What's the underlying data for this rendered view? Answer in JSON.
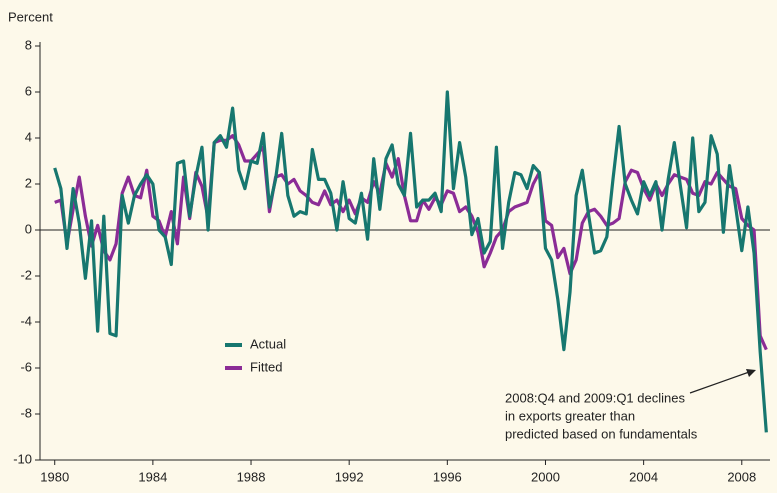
{
  "chart_data": {
    "type": "line",
    "y_label": "Percent",
    "x": [
      1980,
      1980.25,
      1980.5,
      1980.75,
      1981,
      1981.25,
      1981.5,
      1981.75,
      1982,
      1982.25,
      1982.5,
      1982.75,
      1983,
      1983.25,
      1983.5,
      1983.75,
      1984,
      1984.25,
      1984.5,
      1984.75,
      1985,
      1985.25,
      1985.5,
      1985.75,
      1986,
      1986.25,
      1986.5,
      1986.75,
      1987,
      1987.25,
      1987.5,
      1987.75,
      1988,
      1988.25,
      1988.5,
      1988.75,
      1989,
      1989.25,
      1989.5,
      1989.75,
      1990,
      1990.25,
      1990.5,
      1990.75,
      1991,
      1991.25,
      1991.5,
      1991.75,
      1992,
      1992.25,
      1992.5,
      1992.75,
      1993,
      1993.25,
      1993.5,
      1993.75,
      1994,
      1994.25,
      1994.5,
      1994.75,
      1995,
      1995.25,
      1995.5,
      1995.75,
      1996,
      1996.25,
      1996.5,
      1996.75,
      1997,
      1997.25,
      1997.5,
      1997.75,
      1998,
      1998.25,
      1998.5,
      1998.75,
      1999,
      1999.25,
      1999.5,
      1999.75,
      2000,
      2000.25,
      2000.5,
      2000.75,
      2001,
      2001.25,
      2001.5,
      2001.75,
      2002,
      2002.25,
      2002.5,
      2002.75,
      2003,
      2003.25,
      2003.5,
      2003.75,
      2004,
      2004.25,
      2004.5,
      2004.75,
      2005,
      2005.25,
      2005.5,
      2005.75,
      2006,
      2006.25,
      2006.5,
      2006.75,
      2007,
      2007.25,
      2007.5,
      2007.75,
      2008,
      2008.25,
      2008.5,
      2008.75,
      2009
    ],
    "series": [
      {
        "name": "Actual",
        "color": "#17776f",
        "values": [
          2.7,
          1.8,
          -0.8,
          1.8,
          0.3,
          -2.1,
          0.4,
          -4.4,
          0.6,
          -4.5,
          -4.6,
          1.5,
          0.3,
          1.5,
          2.0,
          2.4,
          2.0,
          0.0,
          -0.3,
          -1.5,
          2.9,
          3.0,
          0.6,
          2.3,
          3.6,
          0.0,
          3.8,
          4.1,
          3.6,
          5.3,
          2.6,
          1.8,
          3.0,
          2.9,
          4.2,
          1.0,
          2.2,
          4.2,
          1.5,
          0.6,
          0.8,
          0.7,
          3.5,
          2.2,
          2.2,
          1.6,
          0.0,
          2.1,
          0.5,
          0.3,
          1.6,
          -0.4,
          3.1,
          0.9,
          3.1,
          3.7,
          2.0,
          1.5,
          4.2,
          1.0,
          1.3,
          1.3,
          1.6,
          0.8,
          6.0,
          1.8,
          3.8,
          2.3,
          -0.2,
          0.5,
          -1.0,
          -0.5,
          3.6,
          -0.8,
          1.2,
          2.5,
          2.4,
          1.8,
          2.8,
          2.5,
          -0.8,
          -1.3,
          -3.0,
          -5.2,
          -2.7,
          1.5,
          2.6,
          0.7,
          -1.0,
          -0.9,
          -0.3,
          2.2,
          4.5,
          2.0,
          1.3,
          0.7,
          2.1,
          1.5,
          2.1,
          0.0,
          2.2,
          3.8,
          1.9,
          0.1,
          4.0,
          0.8,
          1.2,
          4.1,
          3.3,
          -0.1,
          2.8,
          1.0,
          -0.9,
          1.0,
          -1.0,
          -5.3,
          -8.8
        ]
      },
      {
        "name": "Fitted",
        "color": "#8b2c96",
        "values": [
          1.2,
          1.3,
          -0.6,
          0.9,
          2.3,
          0.6,
          -0.7,
          0.2,
          -0.9,
          -1.3,
          -0.6,
          1.6,
          2.3,
          1.5,
          1.4,
          2.6,
          0.6,
          0.4,
          -0.3,
          0.8,
          -0.6,
          2.3,
          0.5,
          2.5,
          1.9,
          0.5,
          3.8,
          3.9,
          3.9,
          4.1,
          3.7,
          3.0,
          3.0,
          3.3,
          3.6,
          0.8,
          2.3,
          2.4,
          2.0,
          2.2,
          1.7,
          1.5,
          1.2,
          1.1,
          1.7,
          1.1,
          1.3,
          0.8,
          1.3,
          0.7,
          1.4,
          1.2,
          2.1,
          1.6,
          2.9,
          2.3,
          3.1,
          1.5,
          0.4,
          0.4,
          1.3,
          0.9,
          1.4,
          1.1,
          1.7,
          1.6,
          0.8,
          1.0,
          0.6,
          -0.1,
          -1.6,
          -1.0,
          -0.3,
          0.0,
          0.8,
          1.0,
          1.1,
          1.2,
          2.0,
          2.5,
          0.4,
          0.2,
          -1.2,
          -0.8,
          -1.9,
          -1.3,
          0.3,
          0.8,
          0.9,
          0.6,
          0.2,
          0.3,
          0.5,
          2.1,
          2.6,
          2.5,
          1.8,
          1.3,
          2.0,
          1.5,
          2.0,
          2.4,
          2.3,
          2.2,
          1.6,
          1.5,
          2.1,
          2.0,
          2.5,
          2.2,
          1.9,
          1.8,
          0.5,
          0.2,
          0.0,
          -4.6,
          -5.2
        ]
      }
    ],
    "xlim": [
      1979.4,
      2009.15
    ],
    "xticks": [
      1980,
      1984,
      1988,
      1992,
      1996,
      2000,
      2004,
      2008
    ],
    "ylim": [
      -10,
      8
    ],
    "yticks": [
      -10,
      -8,
      -6,
      -4,
      -2,
      0,
      2,
      4,
      6,
      8
    ],
    "annotation": [
      "2008:Q4 and 2009:Q1 declines",
      "in exports greater than",
      "predicted based on fundamentals"
    ]
  }
}
